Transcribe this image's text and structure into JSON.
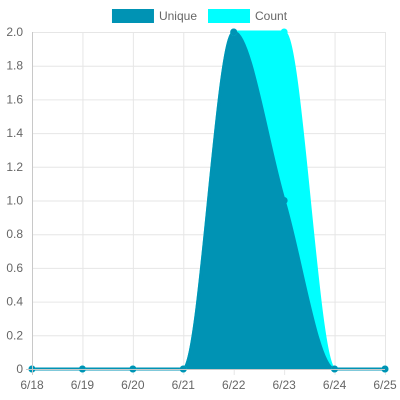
{
  "chart_data": {
    "type": "area",
    "categories": [
      "6/18",
      "6/19",
      "6/20",
      "6/21",
      "6/22",
      "6/23",
      "6/24",
      "6/25"
    ],
    "series": [
      {
        "name": "Unique",
        "values": [
          0,
          0,
          0,
          0,
          2,
          1,
          0,
          0
        ],
        "color": "#0093b4"
      },
      {
        "name": "Count",
        "values": [
          0,
          0,
          0,
          0,
          2,
          2,
          0,
          0
        ],
        "color": "#00ffff"
      }
    ],
    "ylim": [
      0,
      2.0
    ],
    "yticks": [
      "0",
      "0.2",
      "0.4",
      "0.6",
      "0.8",
      "1.0",
      "1.2",
      "1.4",
      "1.6",
      "1.8",
      "2.0"
    ],
    "grid": true,
    "legend_position": "top-center",
    "title": "",
    "xlabel": "",
    "ylabel": ""
  }
}
